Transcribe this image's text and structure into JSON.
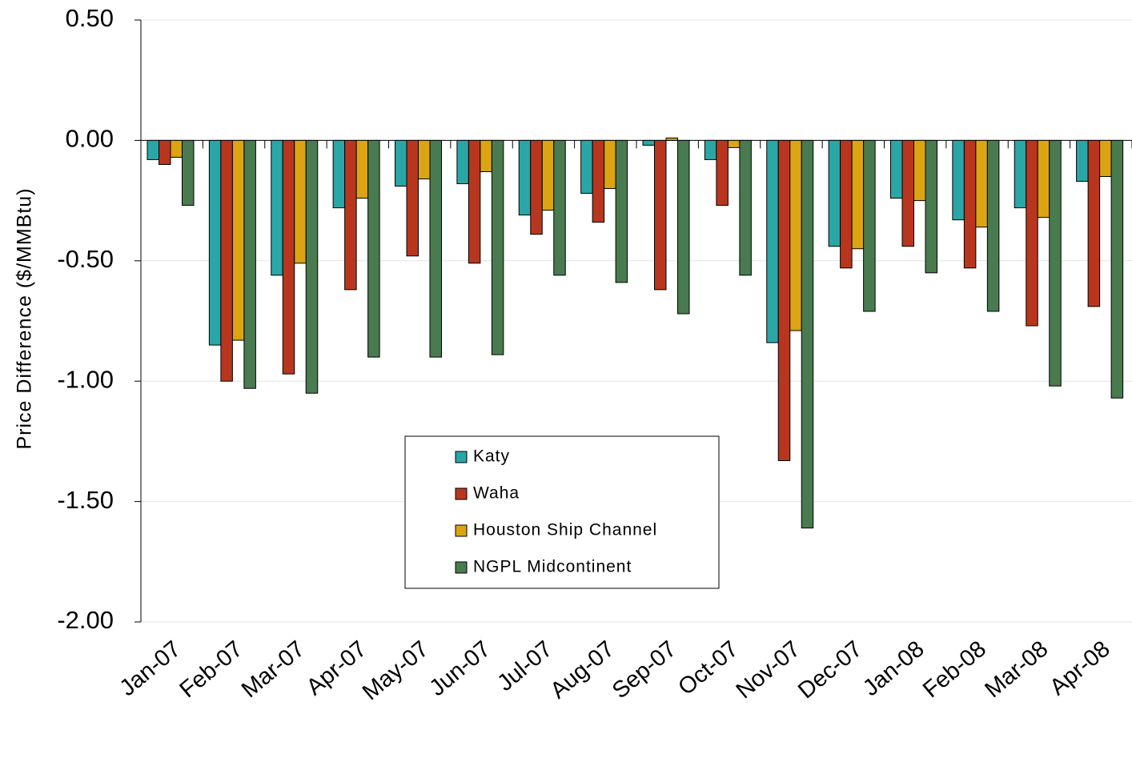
{
  "chart_data": {
    "type": "bar",
    "y_label": "Price Difference  ($/MMBtu)",
    "categories": [
      "Jan-07",
      "Feb-07",
      "Mar-07",
      "Apr-07",
      "May-07",
      "Jun-07",
      "Jul-07",
      "Aug-07",
      "Sep-07",
      "Oct-07",
      "Nov-07",
      "Dec-07",
      "Jan-08",
      "Feb-08",
      "Mar-08",
      "Apr-08"
    ],
    "series": [
      {
        "name": "Katy",
        "color": "#2aa6a6",
        "values": [
          -0.08,
          -0.85,
          -0.56,
          -0.28,
          -0.19,
          -0.18,
          -0.31,
          -0.22,
          -0.02,
          -0.08,
          -0.84,
          -0.44,
          -0.24,
          -0.33,
          -0.28,
          -0.17
        ]
      },
      {
        "name": "Waha",
        "color": "#b8361e",
        "values": [
          -0.1,
          -1.0,
          -0.97,
          -0.62,
          -0.48,
          -0.51,
          -0.39,
          -0.34,
          -0.62,
          -0.27,
          -1.33,
          -0.53,
          -0.44,
          -0.53,
          -0.77,
          -0.69
        ]
      },
      {
        "name": "Houston Ship Channel",
        "color": "#dca413",
        "values": [
          -0.07,
          -0.83,
          -0.51,
          -0.24,
          -0.16,
          -0.13,
          -0.29,
          -0.2,
          0.01,
          -0.03,
          -0.79,
          -0.45,
          -0.25,
          -0.36,
          -0.32,
          -0.15
        ]
      },
      {
        "name": "NGPL Midcontinent",
        "color": "#4a7a50",
        "values": [
          -0.27,
          -1.03,
          -1.05,
          -0.9,
          -0.9,
          -0.89,
          -0.56,
          -0.59,
          -0.72,
          -0.56,
          -1.61,
          -0.71,
          -0.55,
          -0.71,
          -1.02,
          -1.07
        ]
      }
    ],
    "ylim": [
      -2.0,
      0.5
    ],
    "yticks": [
      {
        "value": 0.5,
        "label": "0.50"
      },
      {
        "value": 0,
        "label": "0.00"
      },
      {
        "value": -0.5,
        "label": "-0.50"
      },
      {
        "value": -1.0,
        "label": "-1.00"
      },
      {
        "value": -1.5,
        "label": "-1.50"
      },
      {
        "value": -2.0,
        "label": "-2.00"
      }
    ],
    "grid": true,
    "legend_position": "center"
  }
}
